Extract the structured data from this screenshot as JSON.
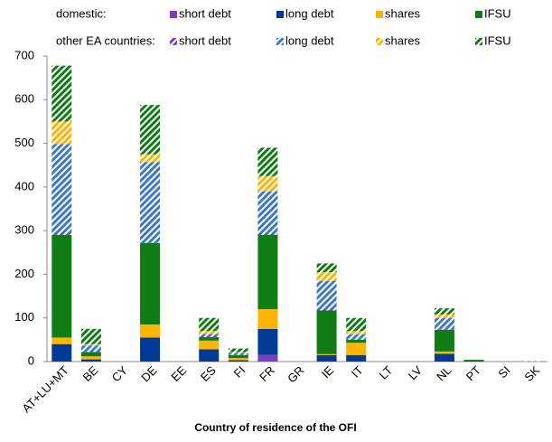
{
  "chart_data": {
    "type": "stacked_bar",
    "legend_groups": [
      "domestic:",
      "other EA countries:"
    ],
    "xlabel": "Country of residence of the OFI",
    "categories": [
      "AT+LU+MT",
      "BE",
      "CY",
      "DE",
      "EE",
      "ES",
      "FI",
      "FR",
      "GR",
      "IE",
      "IT",
      "LT",
      "LV",
      "NL",
      "PT",
      "SI",
      "SK"
    ],
    "ylim": [
      0,
      700
    ],
    "yticks": [
      0,
      100,
      200,
      300,
      400,
      500,
      600,
      700
    ],
    "series": [
      {
        "name": "short debt",
        "color": "#7d3cc8",
        "hatched": false,
        "values": [
          0,
          0,
          0,
          0,
          0,
          0,
          0,
          15,
          0,
          0,
          0,
          0,
          0,
          0,
          0,
          0,
          0
        ]
      },
      {
        "name": "long debt",
        "color": "#003c96",
        "hatched": false,
        "values": [
          40,
          5,
          0,
          55,
          0,
          28,
          3,
          60,
          0,
          15,
          15,
          0,
          0,
          18,
          1,
          0,
          0
        ]
      },
      {
        "name": "shares",
        "color": "#ffb400",
        "hatched": false,
        "values": [
          15,
          7,
          0,
          30,
          0,
          20,
          5,
          45,
          0,
          2,
          28,
          0,
          0,
          5,
          0,
          0,
          0
        ]
      },
      {
        "name": "IFSU",
        "color": "#0f7d14",
        "hatched": false,
        "values": [
          235,
          10,
          0,
          187,
          0,
          8,
          7,
          170,
          0,
          100,
          7,
          0,
          0,
          50,
          3,
          0,
          0
        ]
      },
      {
        "name": "short debt",
        "color": "#7d3cc8",
        "hatched": true,
        "values": [
          5,
          0,
          0,
          0,
          0,
          2,
          0,
          3,
          0,
          3,
          2,
          0,
          0,
          2,
          0,
          0,
          0
        ]
      },
      {
        "name": "long debt",
        "color": "#3c78d2",
        "hatched": true,
        "values": [
          203,
          15,
          0,
          185,
          0,
          5,
          5,
          97,
          0,
          65,
          10,
          0,
          0,
          25,
          0,
          0,
          0
        ]
      },
      {
        "name": "shares",
        "color": "#ffb400",
        "hatched": true,
        "values": [
          52,
          3,
          0,
          18,
          0,
          7,
          2,
          35,
          0,
          20,
          8,
          0,
          0,
          8,
          0,
          0,
          2
        ]
      },
      {
        "name": "IFSU",
        "color": "#0f7d14",
        "hatched": true,
        "values": [
          128,
          35,
          0,
          113,
          0,
          30,
          8,
          65,
          0,
          20,
          30,
          0,
          0,
          14,
          0,
          0,
          0
        ]
      }
    ]
  }
}
